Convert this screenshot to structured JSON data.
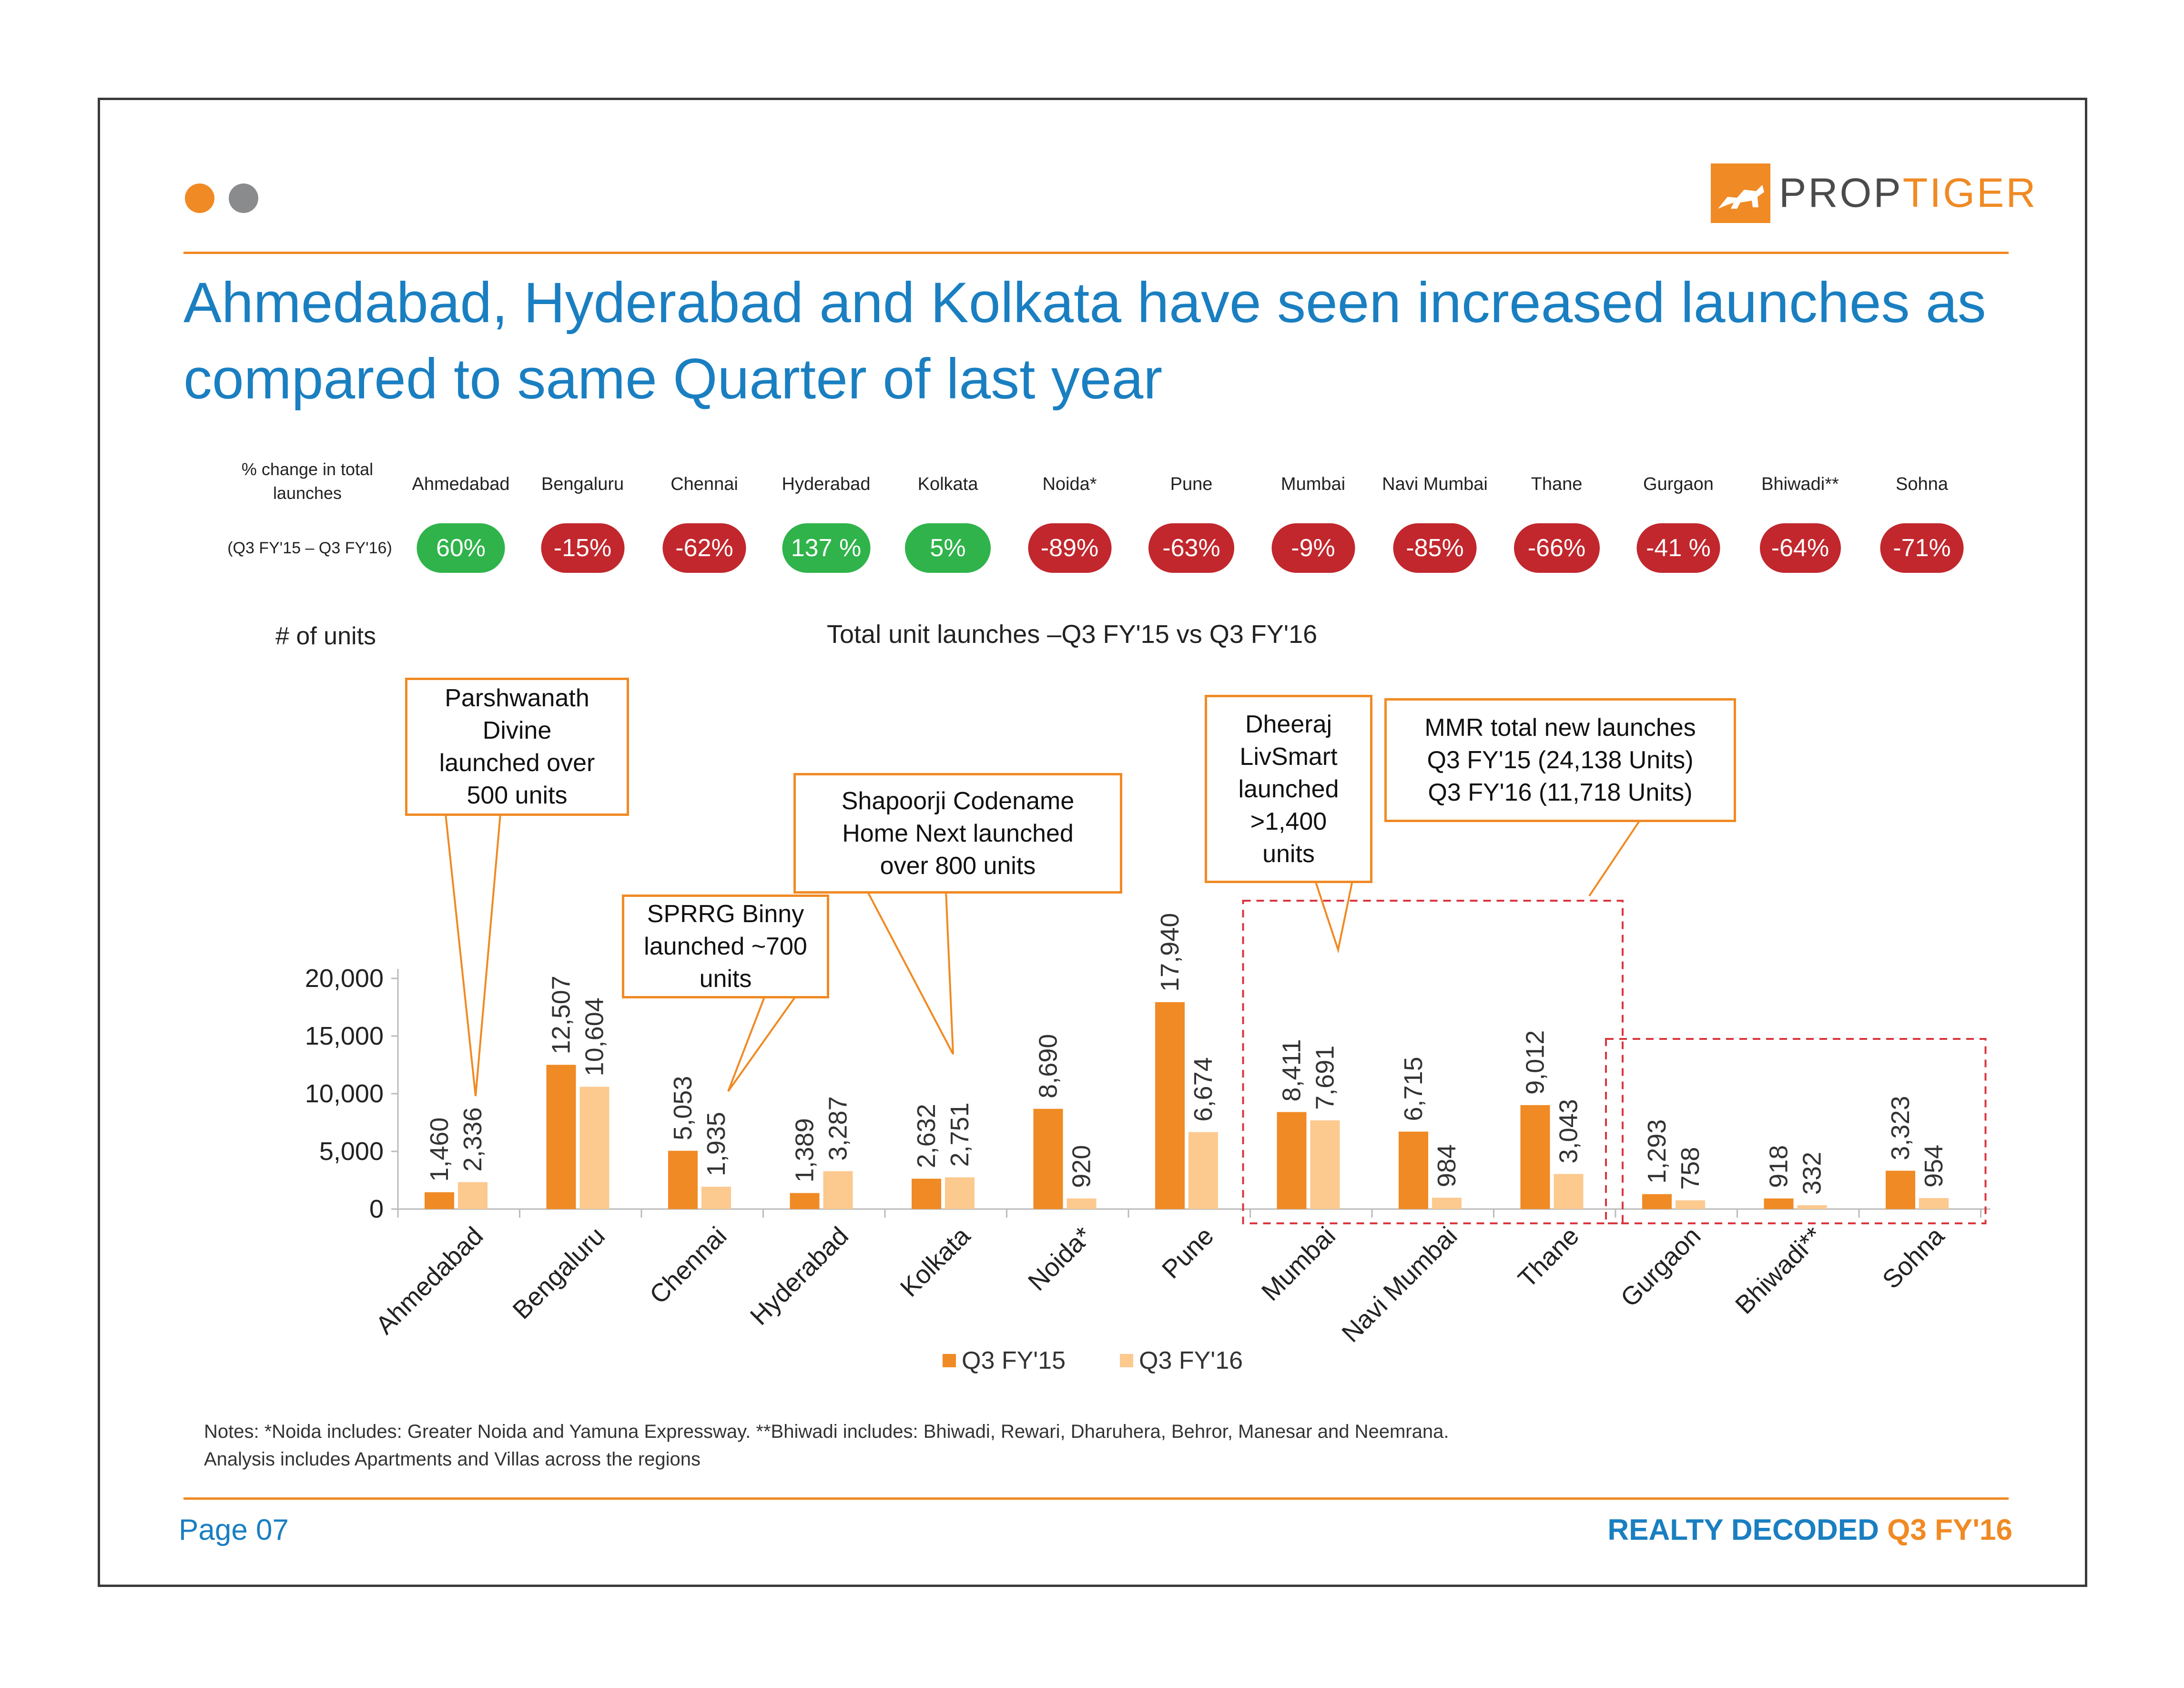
{
  "header": {
    "logo_text_prop": "PROP",
    "logo_text_tiger": "TIGER",
    "title": "Ahmedabad, Hyderabad and Kolkata have seen increased launches as compared to same Quarter of last year"
  },
  "pct_change": {
    "label_line1": "% change in total",
    "label_line2": "launches",
    "period": "(Q3 FY'15  – Q3 FY'16)",
    "cities": [
      "Ahmedabad",
      "Bengaluru",
      "Chennai",
      "Hyderabad",
      "Kolkata",
      "Noida*",
      "Pune",
      "Mumbai",
      "Navi Mumbai",
      "Thane",
      "Gurgaon",
      "Bhiwadi**",
      "Sohna"
    ],
    "values": [
      "60%",
      "-15%",
      "-62%",
      "137 %",
      "5%",
      "-89%",
      "-63%",
      "-9%",
      "-85%",
      "-66%",
      "-41 %",
      "-64%",
      "-71%"
    ],
    "positive": [
      true,
      false,
      false,
      true,
      true,
      false,
      false,
      false,
      false,
      false,
      false,
      false,
      false
    ]
  },
  "chart_data": {
    "type": "bar",
    "title": "Total unit launches –Q3 FY'15 vs Q3 FY'16",
    "ylabel": "# of units",
    "xlabel": "",
    "ylim": [
      0,
      20000
    ],
    "yticks": [
      0,
      5000,
      10000,
      15000,
      20000
    ],
    "ytick_labels": [
      "0",
      "5,000",
      "10,000",
      "15,000",
      "20,000"
    ],
    "categories": [
      "Ahmedabad",
      "Bengaluru",
      "Chennai",
      "Hyderabad",
      "Kolkata",
      "Noida*",
      "Pune",
      "Mumbai",
      "Navi Mumbai",
      "Thane",
      "Gurgaon",
      "Bhiwadi**",
      "Sohna"
    ],
    "series": [
      {
        "name": "Q3 FY'15",
        "color": "#f08a24",
        "values": [
          1460,
          12507,
          5053,
          1389,
          2632,
          8690,
          17940,
          8411,
          6715,
          9012,
          1293,
          918,
          3323
        ],
        "labels": [
          "1,460",
          "12,507",
          "5,053",
          "1,389",
          "2,632",
          "8,690",
          "17,940",
          "8,411",
          "6,715",
          "9,012",
          "1,293",
          "918",
          "3,323"
        ]
      },
      {
        "name": "Q3 FY'16",
        "color": "#fcc98f",
        "values": [
          2336,
          10604,
          1935,
          3287,
          2751,
          920,
          6674,
          7691,
          984,
          3043,
          758,
          332,
          954
        ],
        "labels": [
          "2,336",
          "10,604",
          "1,935",
          "3,287",
          "2,751",
          "920",
          "6,674",
          "7,691",
          "984",
          "3,043",
          "758",
          "332",
          "954"
        ]
      }
    ],
    "legend_position": "bottom"
  },
  "callouts": {
    "parshwanath": "Parshwanath\nDivine\nlaunched over\n500 units",
    "sprrg": "SPRRG Binny\nlaunched ~700\nunits",
    "shapoorji": "Shapoorji Codename\nHome Next launched\nover 800 units",
    "dheeraj": "Dheeraj\nLivSmart\nlaunched\n>1,400\nunits",
    "mmr": "MMR total new launches\nQ3 FY'15 (24,138 Units)\nQ3 FY'16 (11,718 Units)"
  },
  "notes": {
    "line1": "Notes: *Noida includes: Greater Noida and Yamuna Expressway. **Bhiwadi includes: Bhiwadi, Rewari, Dharuhera, Behror, Manesar and Neemrana.",
    "line2": "Analysis includes Apartments and Villas across the regions"
  },
  "footer": {
    "page": "Page 07",
    "brand": "REALTY DECODED",
    "quarter": "Q3 FY'16"
  },
  "colors": {
    "accent_orange": "#f08a24",
    "title_blue": "#1a7fc1",
    "pill_green": "#2fb34a",
    "pill_red": "#c1272d",
    "dash_red": "#d9363e"
  }
}
